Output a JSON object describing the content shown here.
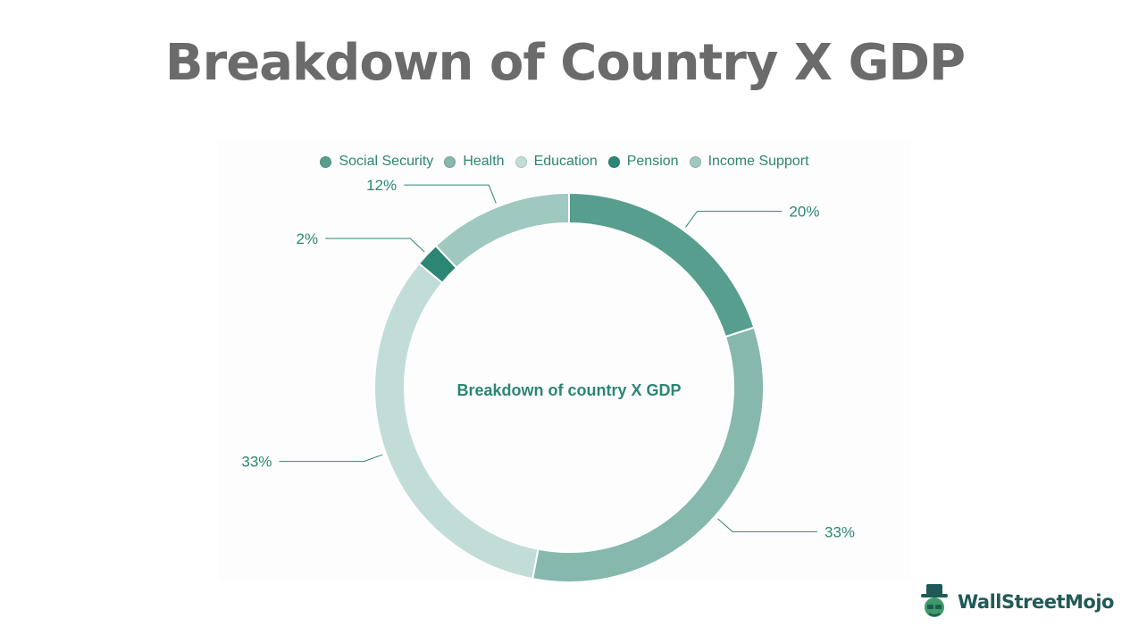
{
  "page": {
    "title": "Breakdown of Country X GDP",
    "logo_text": "WallStreetMojo"
  },
  "chart_data": {
    "type": "pie",
    "variant": "donut",
    "center_label": "Breakdown of country X GDP",
    "legend_position": "top",
    "categories": [
      "Social Security",
      "Health",
      "Education",
      "Pension",
      "Income Support"
    ],
    "values": [
      20,
      33,
      33,
      2,
      12
    ],
    "value_labels": [
      "20%",
      "33%",
      "33%",
      "2%",
      "12%"
    ],
    "colors": [
      "#579e8f",
      "#86b8ae",
      "#c2ddd8",
      "#2c8674",
      "#9fc9c0"
    ],
    "label_color": "#2c8674"
  }
}
